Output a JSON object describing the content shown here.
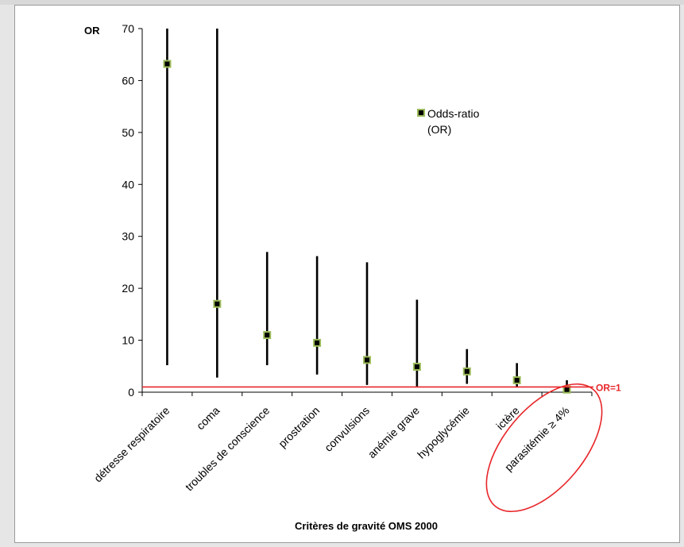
{
  "chart_data": {
    "type": "scatter",
    "ylabel": "OR",
    "xlabel": "Critères de gravité OMS 2000",
    "ylim": [
      0,
      70
    ],
    "yticks": [
      "0",
      "10",
      "20",
      "30",
      "40",
      "50",
      "60",
      "70"
    ],
    "categories": [
      "détresse respiratoire",
      "coma",
      "troubles de conscience",
      "prostration",
      "convulsions",
      "anémie grave",
      "hypoglycémie",
      "ictère",
      "parasitémie ≥ 4%"
    ],
    "series": [
      {
        "name": "Odds-ratio (OR)",
        "values": [
          63.2,
          17.0,
          11.0,
          9.5,
          6.2,
          4.9,
          4.0,
          2.3,
          0.5
        ],
        "lower": [
          5.2,
          2.8,
          5.2,
          3.4,
          1.4,
          1.1,
          1.6,
          0.9,
          0.1
        ],
        "upper": [
          70,
          70,
          27.0,
          26.2,
          25.0,
          17.8,
          8.3,
          5.6,
          2.3
        ]
      }
    ],
    "legend": {
      "line1": "Odds-ratio",
      "line2": "(OR)",
      "position": "top-right"
    },
    "reference_line": {
      "value": 1,
      "label": "OR=1",
      "color": "#e8262a"
    },
    "colors": {
      "marker_fill": "#000000",
      "marker_border": "#9bbb59",
      "errorbar": "#000000",
      "highlight": "#e8262a"
    },
    "annotations": [
      {
        "type": "ellipse",
        "around": "parasitémie ≥ 4%",
        "color": "#e8262a"
      }
    ],
    "grid": false
  }
}
